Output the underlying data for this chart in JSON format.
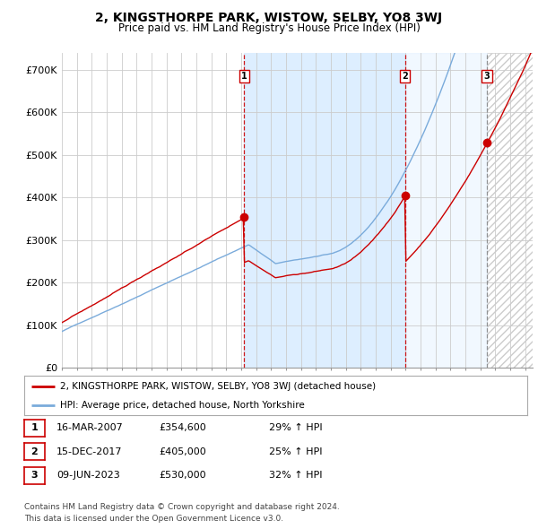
{
  "title": "2, KINGSTHORPE PARK, WISTOW, SELBY, YO8 3WJ",
  "subtitle": "Price paid vs. HM Land Registry's House Price Index (HPI)",
  "title_fontsize": 10,
  "subtitle_fontsize": 8.5,
  "ylabel_ticks": [
    "£0",
    "£100K",
    "£200K",
    "£300K",
    "£400K",
    "£500K",
    "£600K",
    "£700K"
  ],
  "ytick_vals": [
    0,
    100000,
    200000,
    300000,
    400000,
    500000,
    600000,
    700000
  ],
  "ylim": [
    0,
    740000
  ],
  "xlim_start": 1995.0,
  "xlim_end": 2026.5,
  "sale_dates": [
    2007.21,
    2017.96,
    2023.44
  ],
  "sale_prices": [
    354600,
    405000,
    530000
  ],
  "sale_labels": [
    "1",
    "2",
    "3"
  ],
  "vline_colors": [
    "#cc0000",
    "#cc0000",
    "#888888"
  ],
  "vline_styles": [
    "--",
    "--",
    "--"
  ],
  "hpi_color": "#7aabdb",
  "price_color": "#cc0000",
  "marker_color": "#cc0000",
  "grid_color": "#cccccc",
  "shade_color": "#ddeeff",
  "hatch_color": "#cccccc",
  "legend_entries": [
    "2, KINGSTHORPE PARK, WISTOW, SELBY, YO8 3WJ (detached house)",
    "HPI: Average price, detached house, North Yorkshire"
  ],
  "table_rows": [
    [
      "1",
      "16-MAR-2007",
      "£354,600",
      "29% ↑ HPI"
    ],
    [
      "2",
      "15-DEC-2017",
      "£405,000",
      "25% ↑ HPI"
    ],
    [
      "3",
      "09-JUN-2023",
      "£530,000",
      "32% ↑ HPI"
    ]
  ],
  "footnote": "Contains HM Land Registry data © Crown copyright and database right 2024.\nThis data is licensed under the Open Government Licence v3.0.",
  "background_color": "#ffffff"
}
